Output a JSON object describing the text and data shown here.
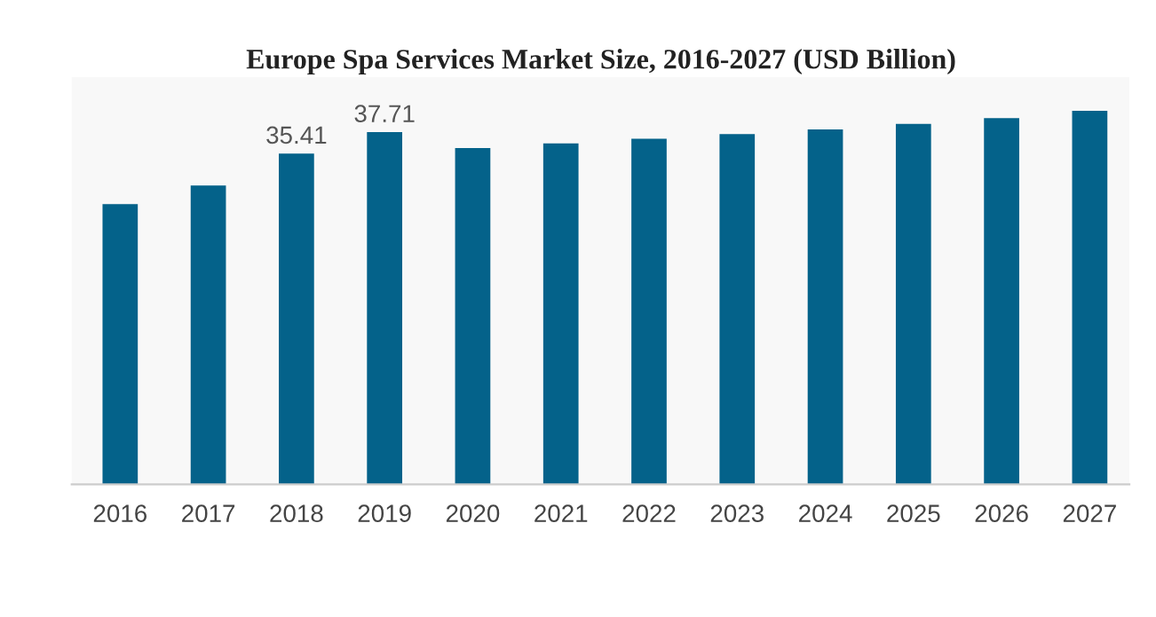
{
  "chart_data": {
    "type": "bar",
    "title": "Europe Spa Services Market Size, 2016-2027 (USD Billion)",
    "categories": [
      "2016",
      "2017",
      "2018",
      "2019",
      "2020",
      "2021",
      "2022",
      "2023",
      "2024",
      "2025",
      "2026",
      "2027"
    ],
    "values": [
      30.0,
      32.0,
      35.41,
      37.71,
      36.0,
      36.5,
      37.0,
      37.5,
      38.0,
      38.6,
      39.2,
      40.0
    ],
    "value_labels": [
      null,
      null,
      "35.41",
      "37.71",
      null,
      null,
      null,
      null,
      null,
      null,
      null,
      null
    ],
    "color": "#04628a",
    "tick_labels": "x",
    "grid": false,
    "legend": false
  }
}
